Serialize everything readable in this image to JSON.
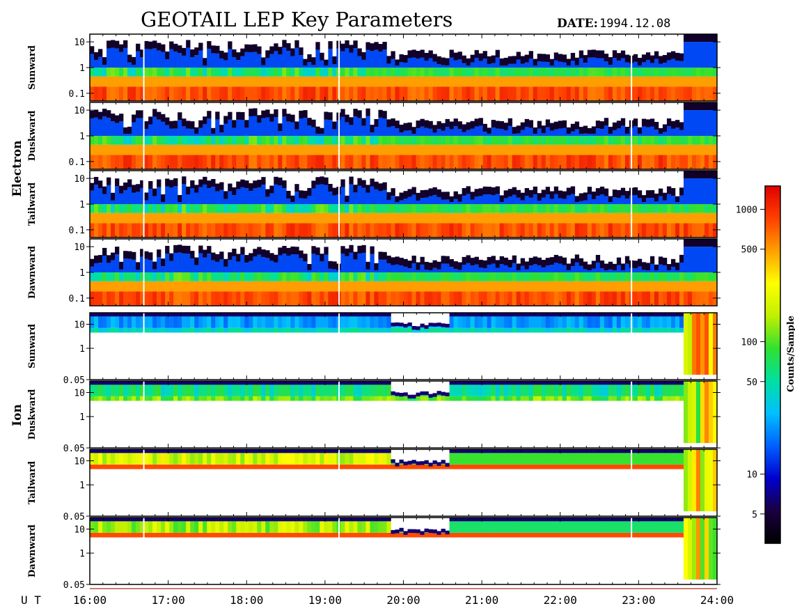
{
  "header": {
    "title": "GEOTAIL LEP Key Parameters",
    "date_label": "DATE:",
    "date_value": "1994.12.08"
  },
  "species_labels": {
    "electron": "Electron",
    "ion": "Ion"
  },
  "chart_data": {
    "type": "heatmap",
    "time_axis": {
      "label": "U T",
      "range_hours": [
        16,
        24
      ],
      "ticks": [
        "16:00",
        "17:00",
        "18:00",
        "19:00",
        "20:00",
        "21:00",
        "22:00",
        "23:00",
        "24:00"
      ]
    },
    "colorbar": {
      "label": "Counts/Sample",
      "scale": "log",
      "range": [
        3,
        1500
      ],
      "ticks": [
        "1000",
        "500",
        "100",
        "50",
        "10",
        "5"
      ],
      "colormap": [
        "#000000",
        "#1a0040",
        "#0000d0",
        "#0060ff",
        "#00c0ff",
        "#00e0a0",
        "#30e030",
        "#c0f000",
        "#ffff00",
        "#ffa000",
        "#ff4000",
        "#e00000"
      ]
    },
    "panels": [
      {
        "species": "Electron",
        "direction": "Sunward",
        "y_scale": "log",
        "y_range": [
          0.05,
          20
        ],
        "y_ticks": [
          "10",
          "1",
          "0.1"
        ]
      },
      {
        "species": "Electron",
        "direction": "Duskward",
        "y_scale": "log",
        "y_range": [
          0.05,
          20
        ],
        "y_ticks": [
          "10",
          "1",
          "0.1"
        ]
      },
      {
        "species": "Electron",
        "direction": "Tailward",
        "y_scale": "log",
        "y_range": [
          0.05,
          20
        ],
        "y_ticks": [
          "10",
          "1",
          "0.1"
        ]
      },
      {
        "species": "Electron",
        "direction": "Dawnward",
        "y_scale": "log",
        "y_range": [
          0.05,
          20
        ],
        "y_ticks": [
          "10",
          "1",
          "0.1"
        ]
      },
      {
        "species": "Ion",
        "direction": "Sunward",
        "y_scale": "log",
        "y_range": [
          0.05,
          30
        ],
        "y_ticks": [
          "10",
          "1",
          "0.05"
        ]
      },
      {
        "species": "Ion",
        "direction": "Duskward",
        "y_scale": "log",
        "y_range": [
          0.05,
          30
        ],
        "y_ticks": [
          "10",
          "1",
          "0.05"
        ]
      },
      {
        "species": "Ion",
        "direction": "Tailward",
        "y_scale": "log",
        "y_range": [
          0.05,
          30
        ],
        "y_ticks": [
          "10",
          "1",
          "0.05"
        ]
      },
      {
        "species": "Ion",
        "direction": "Dawnward",
        "y_scale": "log",
        "y_range": [
          0.05,
          30
        ],
        "y_ticks": [
          "10",
          "1",
          "0.05"
        ]
      }
    ]
  }
}
